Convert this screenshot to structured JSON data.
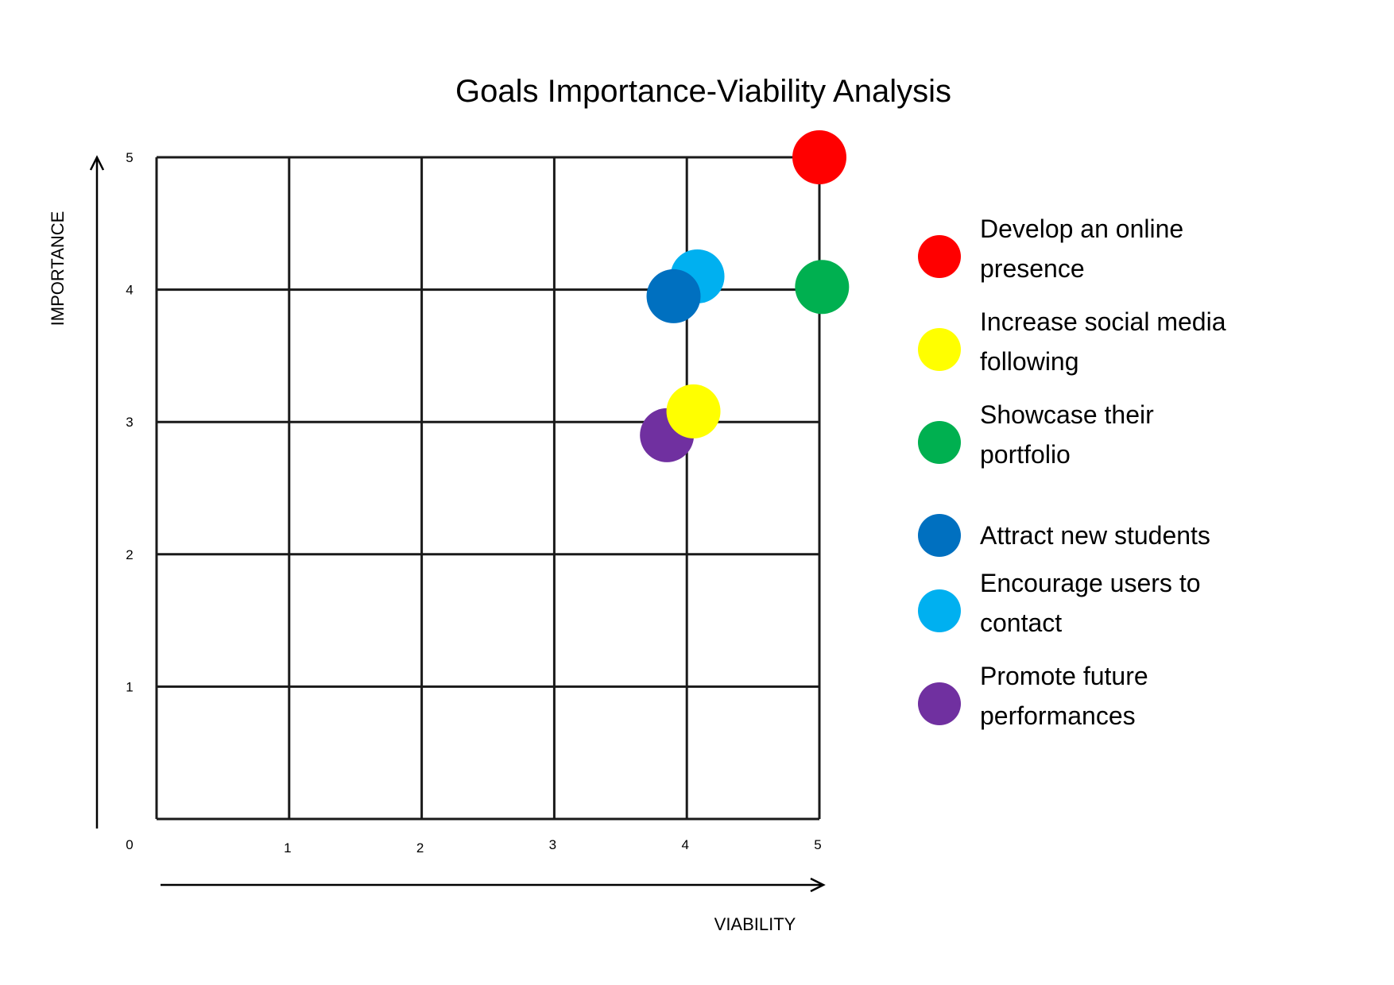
{
  "chart_data": {
    "type": "scatter",
    "title": "Goals Importance-Viability Analysis",
    "xlabel": "VIABILITY",
    "ylabel": "IMPORTANCE",
    "xlim": [
      0,
      5
    ],
    "ylim": [
      0,
      5
    ],
    "x_ticks": [
      "1",
      "2",
      "3",
      "4",
      "5"
    ],
    "y_ticks": [
      "1",
      "2",
      "3",
      "4",
      "5"
    ],
    "origin_label": "0",
    "grid": true,
    "legend_position": "right",
    "series": [
      {
        "name": "Develop an online presence",
        "legend_lines": [
          "Develop an online",
          "presence"
        ],
        "color": "#ff0000",
        "x": 5.0,
        "y": 5.0
      },
      {
        "name": "Increase social media following",
        "legend_lines": [
          "Increase social media",
          "following"
        ],
        "color": "#ffff00",
        "x": 4.05,
        "y": 3.08
      },
      {
        "name": "Showcase their portfolio",
        "legend_lines": [
          "Showcase their",
          "portfolio"
        ],
        "color": "#00b050",
        "x": 5.02,
        "y": 4.02
      },
      {
        "name": "Attract new students",
        "legend_lines": [
          "Attract new students"
        ],
        "color": "#0070c0",
        "x": 3.9,
        "y": 3.95
      },
      {
        "name": "Encourage users to contact",
        "legend_lines": [
          "Encourage users to",
          "contact"
        ],
        "color": "#00b0f0",
        "x": 4.08,
        "y": 4.1
      },
      {
        "name": "Promote future performances",
        "legend_lines": [
          "Promote future",
          "performances"
        ],
        "color": "#7030a0",
        "x": 3.85,
        "y": 2.9
      }
    ],
    "draw_order": [
      0,
      4,
      2,
      3,
      5,
      1
    ]
  }
}
